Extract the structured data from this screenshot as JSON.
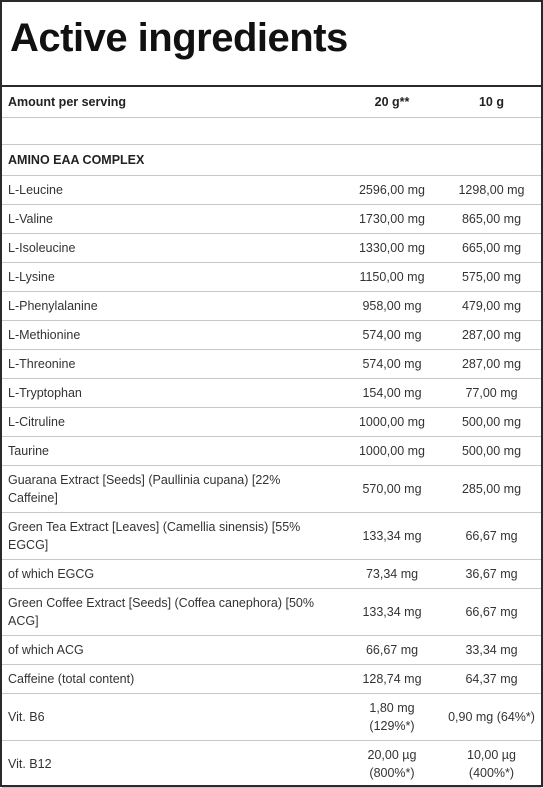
{
  "title": "Active ingredients",
  "header": {
    "label": "Amount per serving",
    "col1": "20 g**",
    "col2": "10 g"
  },
  "section": "AMINO EAA COMPLEX",
  "rows": [
    {
      "name": "L-Leucine",
      "v1": "2596,00 mg",
      "v2": "1298,00 mg"
    },
    {
      "name": "L-Valine",
      "v1": "1730,00 mg",
      "v2": "865,00 mg"
    },
    {
      "name": "L-Isoleucine",
      "v1": "1330,00 mg",
      "v2": "665,00 mg"
    },
    {
      "name": "L-Lysine",
      "v1": "1150,00 mg",
      "v2": "575,00 mg"
    },
    {
      "name": "L-Phenylalanine",
      "v1": "958,00 mg",
      "v2": "479,00 mg"
    },
    {
      "name": "L-Methionine",
      "v1": "574,00 mg",
      "v2": "287,00 mg"
    },
    {
      "name": "L-Threonine",
      "v1": "574,00 mg",
      "v2": "287,00 mg"
    },
    {
      "name": "L-Tryptophan",
      "v1": "154,00 mg",
      "v2": "77,00 mg"
    },
    {
      "name": "L-Citruline",
      "v1": "1000,00 mg",
      "v2": "500,00 mg"
    },
    {
      "name": "Taurine",
      "v1": "1000,00 mg",
      "v2": "500,00 mg"
    },
    {
      "name_line1": "Guarana Extract [Seeds] (Paullinia cupana) [22%",
      "name_line2": "Caffeine]",
      "v1": "570,00 mg",
      "v2": "285,00 mg"
    },
    {
      "name_line1": "Green Tea Extract [Leaves] (Camellia sinensis) [55%",
      "name_line2": "EGCG]",
      "v1": "133,34 mg",
      "v2": "66,67 mg"
    },
    {
      "name": "of which EGCG",
      "v1": "73,34 mg",
      "v2": "36,67 mg"
    },
    {
      "name_line1": "Green Coffee Extract [Seeds] (Coffea canephora) [50%",
      "name_line2": "ACG]",
      "v1": "133,34 mg",
      "v2": "66,67 mg"
    },
    {
      "name": "of which ACG",
      "v1": "66,67 mg",
      "v2": "33,34 mg"
    },
    {
      "name": "Caffeine (total content)",
      "v1": "128,74 mg",
      "v2": "64,37 mg"
    },
    {
      "name": "Vit. B6",
      "v1_line1": "1,80 mg",
      "v1_line2": "(129%*)",
      "v2": "0,90 mg (64%*)"
    },
    {
      "name": "Vit. B12",
      "v1_line1": "20,00 µg",
      "v1_line2": "(800%*)",
      "v2_line1": "10,00 µg",
      "v2_line2": "(400%*)"
    }
  ]
}
